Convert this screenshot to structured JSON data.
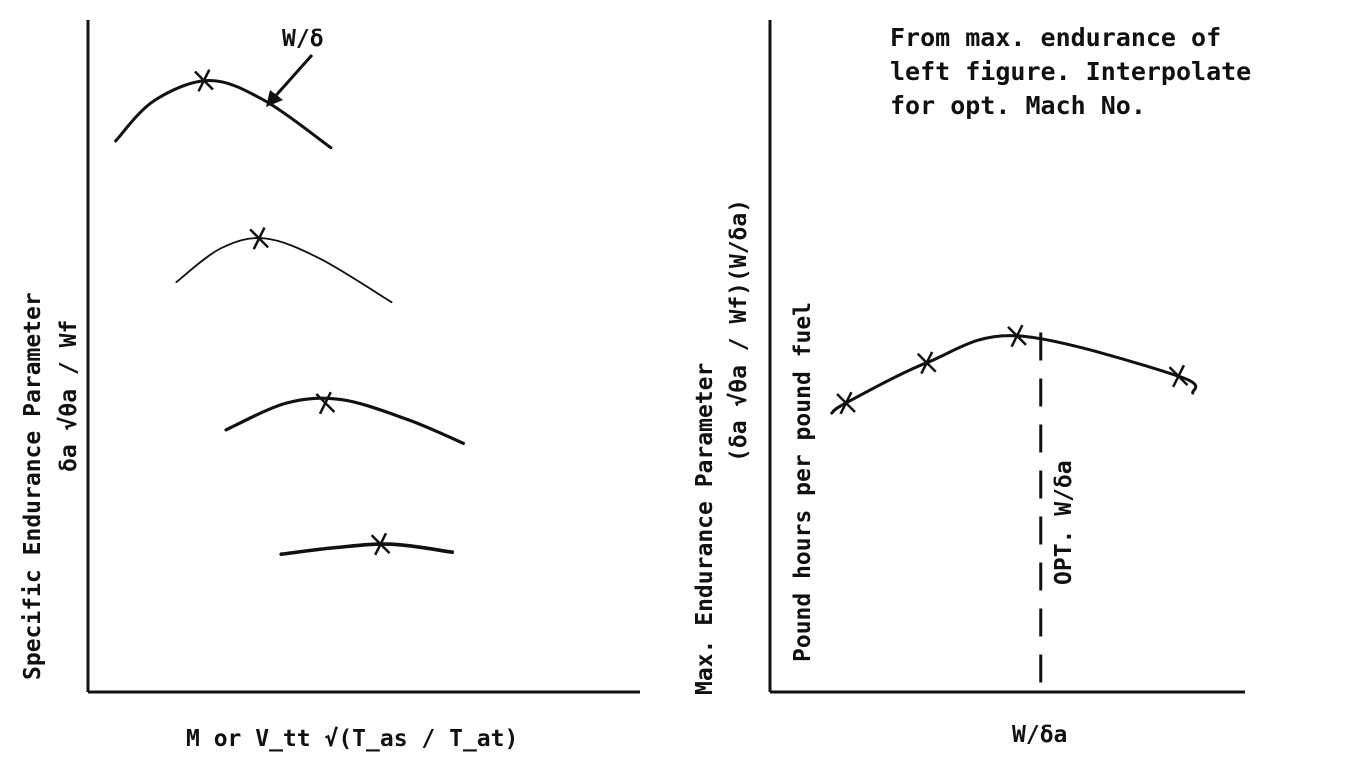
{
  "chart_data": [
    {
      "type": "line",
      "xlabel": "M or V_tt √(T_as / T_at)",
      "ylabel": "Specific Endurance Parameter",
      "ylabel_formula": "δa √θa / Wf",
      "annotation": "W/δ",
      "series": [
        {
          "values": [
            {
              "x": 0.05,
              "y": 0.82
            },
            {
              "x": 0.12,
              "y": 0.88
            },
            {
              "x": 0.22,
              "y": 0.91
            },
            {
              "x": 0.32,
              "y": 0.88
            },
            {
              "x": 0.44,
              "y": 0.81
            }
          ]
        },
        {
          "values": [
            {
              "x": 0.16,
              "y": 0.61
            },
            {
              "x": 0.24,
              "y": 0.66
            },
            {
              "x": 0.32,
              "y": 0.675
            },
            {
              "x": 0.42,
              "y": 0.645
            },
            {
              "x": 0.55,
              "y": 0.58
            }
          ]
        },
        {
          "values": [
            {
              "x": 0.25,
              "y": 0.39
            },
            {
              "x": 0.36,
              "y": 0.43
            },
            {
              "x": 0.46,
              "y": 0.435
            },
            {
              "x": 0.58,
              "y": 0.405
            },
            {
              "x": 0.68,
              "y": 0.37
            }
          ]
        },
        {
          "values": [
            {
              "x": 0.35,
              "y": 0.205
            },
            {
              "x": 0.45,
              "y": 0.215
            },
            {
              "x": 0.55,
              "y": 0.22
            },
            {
              "x": 0.66,
              "y": 0.208
            }
          ]
        }
      ],
      "optima": [
        {
          "x": 0.21,
          "y": 0.91
        },
        {
          "x": 0.31,
          "y": 0.675
        },
        {
          "x": 0.43,
          "y": 0.43
        },
        {
          "x": 0.53,
          "y": 0.22
        }
      ]
    },
    {
      "type": "line",
      "xlabel": "W/δa",
      "ylabel": "Max. Endurance Parameter",
      "ylabel_formula": "(δa √θa / Wf)(W/δa)",
      "ylabel_units": "Pound hours per pound fuel",
      "note": [
        "From max. endurance of",
        "left figure.  Interpolate",
        "for opt. Mach No."
      ],
      "opt_label": "OPT.  W/δa",
      "points": [
        {
          "x": 0.16,
          "y": 0.43
        },
        {
          "x": 0.33,
          "y": 0.49
        },
        {
          "x": 0.52,
          "y": 0.53
        },
        {
          "x": 0.86,
          "y": 0.47
        }
      ],
      "opt_x": 0.57
    }
  ]
}
